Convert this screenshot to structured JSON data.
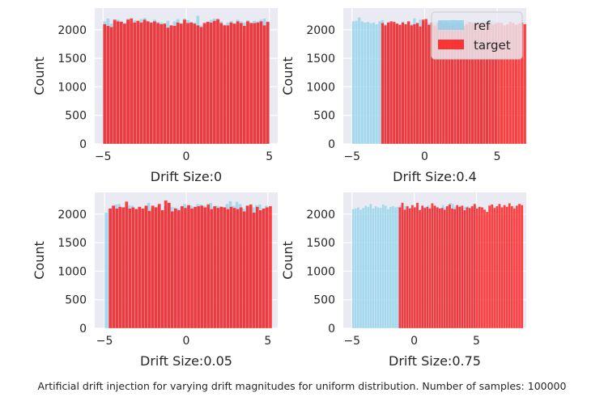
{
  "caption": "Artificial drift injection for varying drift magnitudes for uniform distribution. Number of samples: 100000",
  "colors": {
    "ref": "#87ceeb",
    "target": "#ff0000",
    "axes_bg": "#eaeaf2",
    "grid": "#ffffff",
    "text": "#262626"
  },
  "legend": {
    "placement": "upper-right",
    "panel": 1,
    "entries": [
      "ref",
      "target"
    ]
  },
  "chart_data": [
    {
      "type": "bar",
      "title": "",
      "xlabel": "Drift Size:0",
      "ylabel": "Count",
      "xlim": [
        -5.5,
        5.5
      ],
      "ylim": [
        0,
        2380
      ],
      "xticks": [
        -5,
        0,
        5
      ],
      "xtick_labels": [
        "−5",
        "0",
        "5"
      ],
      "yticks": [
        0,
        500,
        1000,
        1500,
        2000
      ],
      "grid": true,
      "series": [
        {
          "name": "ref",
          "bin_start": -5,
          "bin_end": 5,
          "bins": 50,
          "values": [
            2150,
            2200,
            2110,
            2140,
            2180,
            2160,
            2120,
            2200,
            2130,
            2170,
            2140,
            2190,
            2210,
            2150,
            2120,
            2180,
            2140,
            2130,
            2110,
            2160,
            2080,
            2150,
            2190,
            2120,
            2200,
            2170,
            2140,
            2130,
            2250,
            2080,
            2100,
            2150,
            2180,
            2200,
            2170,
            2150,
            2090,
            2130,
            2160,
            2110,
            2180,
            2150,
            2130,
            2170,
            2120,
            2160,
            2150,
            2180,
            2200,
            2150
          ]
        },
        {
          "name": "target",
          "bin_start": -5,
          "bin_end": 5,
          "bins": 50,
          "values": [
            2100,
            2070,
            2050,
            2180,
            2150,
            2140,
            2110,
            2180,
            2200,
            2130,
            2160,
            2130,
            2180,
            2150,
            2130,
            2150,
            2120,
            2100,
            2110,
            2040,
            2080,
            2070,
            2130,
            2110,
            2180,
            2120,
            2130,
            2110,
            2080,
            2050,
            2120,
            2140,
            2130,
            2160,
            2190,
            2120,
            2080,
            2080,
            2130,
            2110,
            2150,
            2120,
            2070,
            2150,
            2120,
            2120,
            2130,
            2150,
            2080,
            2140
          ]
        }
      ]
    },
    {
      "type": "bar",
      "title": "",
      "xlabel": "Drift Size:0.4",
      "ylabel": "Count",
      "xlim": [
        -5.6,
        7.0
      ],
      "ylim": [
        0,
        2380
      ],
      "xticks": [
        -5,
        0,
        5
      ],
      "xtick_labels": [
        "−5",
        "0",
        "5"
      ],
      "yticks": [
        0,
        500,
        1000,
        1500,
        2000
      ],
      "grid": true,
      "series": [
        {
          "name": "ref",
          "bin_start": -5,
          "bin_end": 5,
          "bins": 50,
          "values": [
            2150,
            2160,
            2220,
            2150,
            2130,
            2140,
            2120,
            2130,
            2100,
            2150,
            2170,
            2100,
            2130,
            2120,
            2100,
            2110,
            2080,
            2150,
            2090,
            2130,
            2100,
            2200,
            2120,
            2180,
            2140,
            2130,
            2120,
            2110,
            2140,
            2150,
            2100,
            2090,
            2140,
            2130,
            2190,
            2180,
            2150,
            2170,
            2130,
            2160,
            2110,
            2140,
            2120,
            2150,
            2130,
            2170,
            2140,
            2120,
            2160,
            2150
          ]
        },
        {
          "name": "target",
          "bin_start": -3,
          "bin_end": 7,
          "bins": 50,
          "values": [
            2120,
            2080,
            2130,
            2150,
            2140,
            2110,
            2090,
            2130,
            2100,
            2150,
            2080,
            2100,
            2120,
            2060,
            2180,
            2190,
            2090,
            2130,
            2080,
            2120,
            2150,
            2110,
            2140,
            2100,
            2120,
            2090,
            2130,
            2110,
            2080,
            2100,
            2140,
            2120,
            2090,
            2130,
            2110,
            2100,
            2150,
            2120,
            2090,
            2110,
            2130,
            2120,
            2080,
            2100,
            2140,
            2120,
            2090,
            2110,
            2130,
            2100
          ]
        }
      ]
    },
    {
      "type": "bar",
      "title": "",
      "xlabel": "Drift Size:0.05",
      "ylabel": "Count",
      "xlim": [
        -5.6,
        5.6
      ],
      "ylim": [
        0,
        2380
      ],
      "xticks": [
        -5,
        0,
        5
      ],
      "xtick_labels": [
        "−5",
        "0",
        "5"
      ],
      "yticks": [
        0,
        500,
        1000,
        1500,
        2000
      ],
      "grid": true,
      "series": [
        {
          "name": "ref",
          "bin_start": -5,
          "bin_end": 5,
          "bins": 50,
          "values": [
            2030,
            2100,
            2150,
            2170,
            2180,
            2100,
            2130,
            2160,
            2150,
            2100,
            2120,
            2090,
            2140,
            2200,
            2110,
            2130,
            2150,
            2080,
            2150,
            2200,
            2130,
            2120,
            2100,
            2130,
            2180,
            2140,
            2150,
            2130,
            2180,
            2170,
            2150,
            2120,
            2200,
            2130,
            2150,
            2140,
            2120,
            2180,
            2230,
            2150,
            2220,
            2180,
            2100,
            2150,
            2130,
            2120,
            2160,
            2170,
            2100,
            2150
          ]
        },
        {
          "name": "target",
          "bin_start": -4.75,
          "bin_end": 5.25,
          "bins": 50,
          "values": [
            2100,
            2150,
            2100,
            2130,
            2120,
            2220,
            2100,
            2120,
            2090,
            2130,
            2100,
            2150,
            2060,
            2150,
            2120,
            2180,
            2070,
            2240,
            2200,
            2050,
            2100,
            2070,
            2140,
            2110,
            2160,
            2100,
            2130,
            2140,
            2150,
            2120,
            2170,
            2090,
            2140,
            2110,
            2130,
            2120,
            2090,
            2130,
            2110,
            2090,
            2120,
            2050,
            2150,
            2170,
            2030,
            2130,
            2070,
            2100,
            2120,
            2140
          ]
        }
      ]
    },
    {
      "type": "bar",
      "title": "",
      "xlabel": "Drift Size:0.75",
      "ylabel": "Count",
      "xlim": [
        -5.7,
        9.0
      ],
      "ylim": [
        0,
        2380
      ],
      "xticks": [
        -5,
        0,
        5
      ],
      "xtick_labels": [
        "−5",
        "0",
        "5"
      ],
      "yticks": [
        0,
        500,
        1000,
        1500,
        2000
      ],
      "grid": true,
      "series": [
        {
          "name": "ref",
          "bin_start": -5,
          "bin_end": 5,
          "bins": 50,
          "values": [
            2090,
            2100,
            2120,
            2080,
            2110,
            2150,
            2130,
            2180,
            2100,
            2140,
            2120,
            2110,
            2170,
            2150,
            2090,
            2130,
            2140,
            2120,
            2130,
            2160,
            2080,
            2140,
            2110,
            2120,
            2100,
            2130,
            2140,
            2090,
            2110,
            2130,
            2150,
            2120,
            2100,
            2140,
            2130,
            2110,
            2160,
            2120,
            2140,
            2200,
            2180,
            2130,
            2120,
            2150,
            2110,
            2130,
            2140,
            2100,
            2120,
            2150
          ]
        },
        {
          "name": "target",
          "bin_start": -1.25,
          "bin_end": 8.75,
          "bins": 50,
          "values": [
            2120,
            2200,
            2080,
            2140,
            2100,
            2160,
            2120,
            2200,
            2070,
            2150,
            2110,
            2130,
            2100,
            2190,
            2150,
            2120,
            2100,
            2110,
            2080,
            2140,
            2170,
            2100,
            2090,
            2160,
            2130,
            2150,
            2070,
            2120,
            2110,
            2140,
            2180,
            2100,
            2130,
            2120,
            2080,
            2040,
            2150,
            2170,
            2110,
            2140,
            2180,
            2120,
            2160,
            2130,
            2190,
            2140,
            2100,
            2150,
            2180,
            2160
          ]
        }
      ]
    }
  ]
}
